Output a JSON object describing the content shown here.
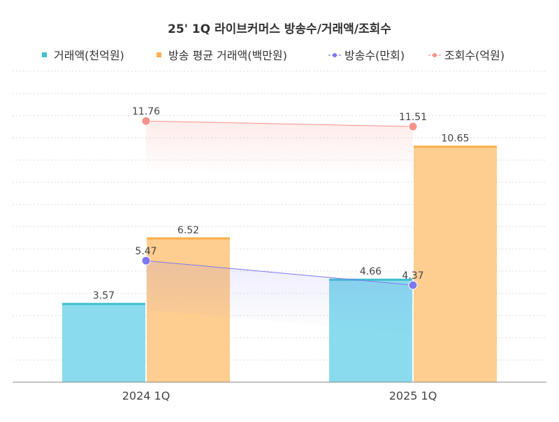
{
  "chart_data": {
    "type": "bar",
    "title": "25' 1Q 라이브커머스 방송수/거래액/조회수",
    "categories": [
      "2024 1Q",
      "2025 1Q"
    ],
    "ylim": [
      0,
      14
    ],
    "grid": true,
    "legend_position": "top",
    "series": [
      {
        "name": "거래액(천억원)",
        "kind": "bar",
        "values": [
          3.57,
          4.66
        ],
        "labels": [
          "3.57",
          "4.66"
        ],
        "color": "#8adbee",
        "edge_color": "#3fbfcf"
      },
      {
        "name": "방송 평균 거래액(백만원)",
        "kind": "bar",
        "values": [
          6.52,
          10.65
        ],
        "labels": [
          "6.52",
          "10.65"
        ],
        "color": "#fecd90",
        "edge_color": "#f9ae4c"
      },
      {
        "name": "방송수(만회)",
        "kind": "line",
        "values": [
          5.47,
          4.37
        ],
        "labels": [
          "5.47",
          "4.37"
        ],
        "color": "#7d78ee"
      },
      {
        "name": "조회수(억원)",
        "kind": "line",
        "values": [
          11.76,
          11.51
        ],
        "labels": [
          "11.76",
          "11.51"
        ],
        "color": "#f7928a"
      }
    ]
  }
}
